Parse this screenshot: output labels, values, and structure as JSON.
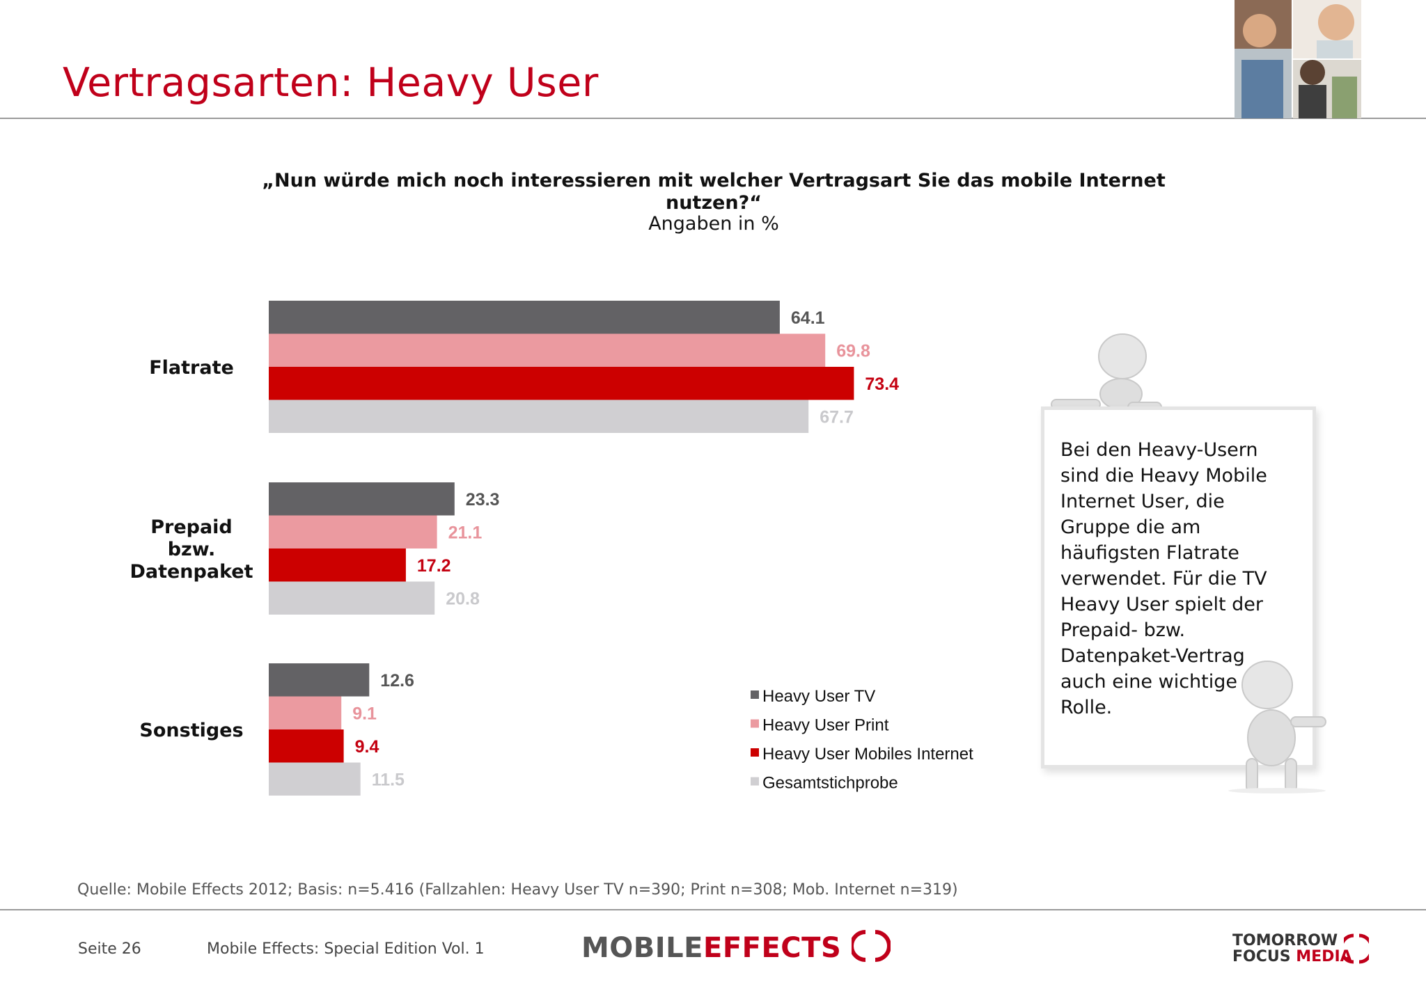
{
  "page": {
    "title": "Vertragsarten: Heavy User",
    "source": "Quelle: Mobile Effects 2012; Basis: n=5.416 (Fallzahlen: Heavy User TV n=390; Print n=308; Mob. Internet n=319)",
    "page_number": "Seite 26",
    "edition": "Mobile Effects: Special Edition Vol. 1",
    "note": "Bei den Heavy-Usern sind die Heavy Mobile Internet User, die Gruppe die am häufigsten Flatrate verwendet. Für die TV Heavy User spielt der Prepaid- bzw. Datenpaket-Vertrag auch eine wichtige Rolle.",
    "logo_left_part1": "MOBILE",
    "logo_left_part2": "EFFECTS",
    "logo_right_line1": "TOMORROW",
    "logo_right_line2a": "FOCUS",
    "logo_right_line2b": "MEDIA"
  },
  "chart_data": {
    "type": "bar",
    "orientation": "horizontal",
    "title": "„Nun würde mich noch interessieren mit welcher Vertragsart Sie das mobile Internet nutzen?“",
    "subtitle": "Angaben in %",
    "categories": [
      "Flatrate",
      "Prepaid bzw. Datenpaket",
      "Sonstiges"
    ],
    "category_lines": [
      [
        "Flatrate"
      ],
      [
        "Prepaid",
        "bzw.",
        "Datenpaket"
      ],
      [
        "Sonstiges"
      ]
    ],
    "series": [
      {
        "name": "Heavy User TV",
        "color": "#636265",
        "label_color": "#555555",
        "values": [
          64.1,
          23.3,
          12.6
        ]
      },
      {
        "name": "Heavy User Print",
        "color": "#eb9aa0",
        "label_color": "#e8939b",
        "values": [
          69.8,
          21.1,
          9.1
        ]
      },
      {
        "name": "Heavy User Mobiles Internet",
        "color": "#cc0000",
        "label_color": "#c40010",
        "values": [
          73.4,
          17.2,
          9.4
        ]
      },
      {
        "name": "Gesamtstichprobe",
        "color": "#d0cfd2",
        "label_color": "#c9c9cc",
        "values": [
          67.7,
          20.8,
          11.5
        ]
      }
    ],
    "xlim": [
      0,
      100
    ],
    "legend_position": "bottom-right"
  }
}
